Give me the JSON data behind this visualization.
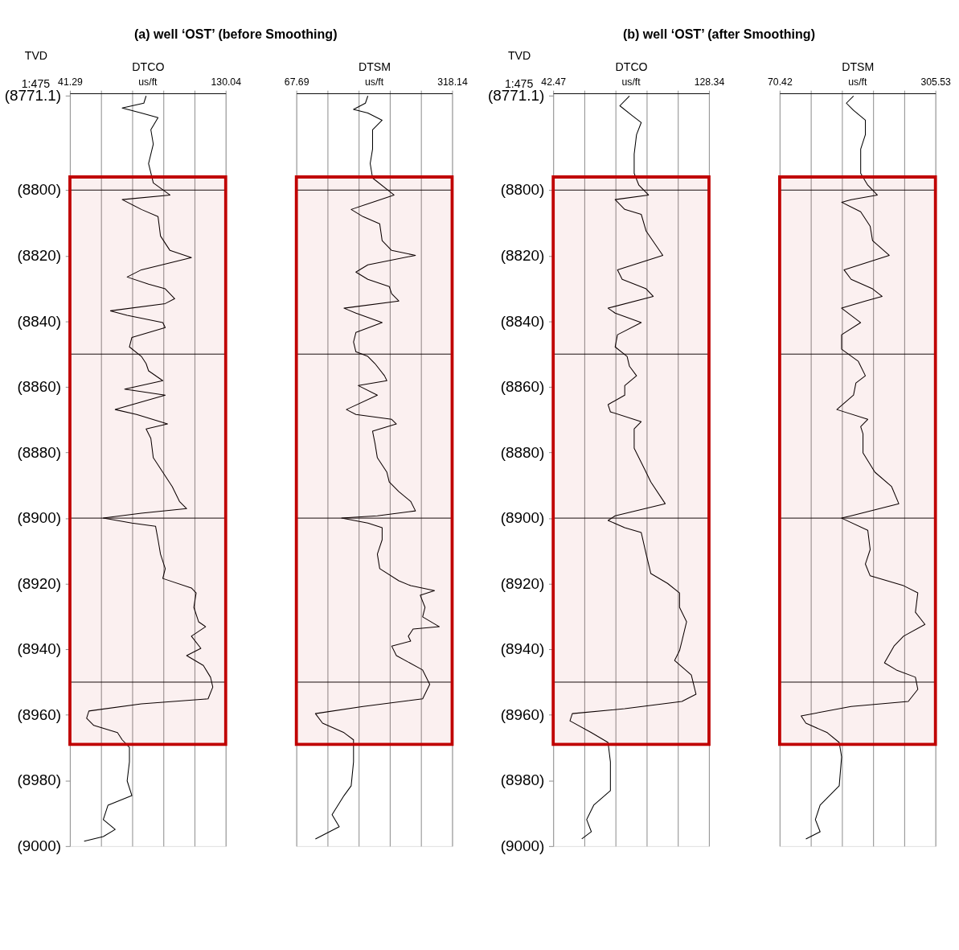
{
  "chart_data": [
    {
      "type": "line",
      "title": "(a) well ‘OST’ (before Smoothing)",
      "xlabel": "DTCO",
      "ylabel": "TVD",
      "annotations": [
        "1:475",
        "us/ft"
      ],
      "grid": "x",
      "xlim": [
        41.29,
        130.04
      ],
      "xticks": [
        41.29,
        {
          "value": 59.04,
          "label": null
        },
        {
          "value": 76.79,
          "label": null
        },
        {
          "value": 94.54,
          "label": null
        },
        {
          "value": 112.29,
          "label": null
        },
        130.04
      ],
      "ylim": [
        9000,
        8770.5
      ],
      "yticks": [
        {
          "value": 8771.1,
          "label": "(8771.1)"
        },
        {
          "value": 8800,
          "label": "(8800)"
        },
        {
          "value": 8820,
          "label": "(8820)"
        },
        {
          "value": 8840,
          "label": "(8840)"
        },
        {
          "value": 8860,
          "label": "(8860)"
        },
        {
          "value": 8880,
          "label": "(8880)"
        },
        {
          "value": 8900,
          "label": "(8900)"
        },
        {
          "value": 8920,
          "label": "(8920)"
        },
        {
          "value": 8940,
          "label": "(8940)"
        },
        {
          "value": 8960,
          "label": "(8960)"
        },
        {
          "value": 8980,
          "label": "(8980)"
        },
        {
          "value": 9000,
          "label": "(9000)"
        }
      ],
      "ref_lines": [
        {
          "axis": "y",
          "value": 8800,
          "color": "#000000"
        },
        {
          "axis": "y",
          "value": 8850,
          "color": "#000000"
        },
        {
          "axis": "y",
          "value": 8900,
          "color": "#000000"
        },
        {
          "axis": "y",
          "value": 8950,
          "color": "#000000"
        }
      ],
      "bands": [
        {
          "axis": "y",
          "from": 8796,
          "to": 8969,
          "color": "#c00000"
        }
      ],
      "series": [
        {
          "color": "#000000",
          "x": [
            84.7,
            83.4,
            71.1,
            82.0,
            91.5,
            87.4,
            88.8,
            86.1,
            88.8,
            98.3,
            71.1,
            82.0,
            91.5,
            92.9,
            98.3,
            110.5,
            82.0,
            73.9,
            86.1,
            95.6,
            101.0,
            95.6,
            64.4,
            73.9,
            94.2,
            95.6,
            76.6,
            75.2,
            82.0,
            84.7,
            86.1,
            94.2,
            72.5,
            95.6,
            67.1,
            79.3,
            96.9,
            84.7,
            87.4,
            88.8,
            94.2,
            99.6,
            103.7,
            107.8,
            82.0,
            60.3,
            76.6,
            90.1,
            91.5,
            92.9,
            95.6,
            94.2,
            110.5,
            113.2,
            111.9,
            114.6,
            118.6,
            110.5,
            115.9,
            107.8,
            117.3,
            121.4,
            122.7,
            120.0,
            82.0,
            52.1,
            50.8,
            54.9,
            68.4,
            71.1,
            75.2,
            75.2,
            73.9,
            76.6,
            63.0,
            60.3,
            67.1,
            60.3,
            49.4
          ],
          "values": [
            8771.3,
            8773.5,
            8775.0,
            8776.5,
            8777.9,
            8781.6,
            8786.0,
            8791.9,
            8797.8,
            8801.5,
            8802.9,
            8805.9,
            8808.1,
            8814.0,
            8818.4,
            8820.6,
            8824.3,
            8826.5,
            8828.7,
            8830.1,
            8833.1,
            8834.6,
            8836.8,
            8838.2,
            8840.4,
            8841.9,
            8844.9,
            8847.8,
            8850.7,
            8852.9,
            8855.1,
            8858.1,
            8860.7,
            8862.5,
            8866.9,
            8868.4,
            8871.3,
            8872.8,
            8875.7,
            8881.6,
            8886.0,
            8890.4,
            8894.9,
            8897.1,
            8898.5,
            8900.0,
            8901.5,
            8902.5,
            8906.6,
            8911.0,
            8915.4,
            8918.4,
            8921.3,
            8922.8,
            8927.2,
            8931.6,
            8933.1,
            8936.0,
            8939.7,
            8941.9,
            8944.9,
            8948.5,
            8951.5,
            8955.1,
            8956.6,
            8958.8,
            8961.0,
            8963.2,
            8965.4,
            8967.6,
            8969.9,
            8974.3,
            8980.1,
            8984.6,
            8987.5,
            8991.9,
            8994.9,
            8997.1,
            8998.5
          ]
        }
      ]
    },
    {
      "type": "line",
      "xlabel": "DTSM",
      "annotations": [
        "us/ft"
      ],
      "grid": "x",
      "tick_labels": "x",
      "xlim": [
        67.69,
        318.14
      ],
      "xticks": [
        67.69,
        {
          "value": 117.78,
          "label": null
        },
        {
          "value": 167.87,
          "label": null
        },
        {
          "value": 217.96,
          "label": null
        },
        {
          "value": 268.05,
          "label": null
        },
        318.14
      ],
      "ylim": [
        9000,
        8770.5
      ],
      "ref_lines": [
        {
          "axis": "y",
          "value": 8800,
          "color": "#000000"
        },
        {
          "axis": "y",
          "value": 8850,
          "color": "#000000"
        },
        {
          "axis": "y",
          "value": 8900,
          "color": "#000000"
        },
        {
          "axis": "y",
          "value": 8950,
          "color": "#000000"
        }
      ],
      "bands": [
        {
          "axis": "y",
          "from": 8796,
          "to": 8969,
          "color": "#c00000"
        }
      ],
      "series": [
        {
          "color": "#000000",
          "x": [
            182.6,
            178.7,
            159.6,
            182.6,
            205.6,
            190.2,
            190.2,
            186.4,
            190.2,
            224.7,
            155.8,
            174.9,
            201.7,
            205.6,
            220.9,
            259.2,
            182.6,
            163.4,
            182.6,
            217.0,
            220.9,
            232.4,
            144.3,
            163.4,
            205.6,
            163.4,
            159.6,
            163.4,
            182.6,
            194.1,
            209.4,
            213.2,
            167.3,
            197.9,
            148.1,
            163.4,
            220.9,
            228.5,
            190.2,
            194.1,
            197.9,
            213.2,
            217.0,
            232.4,
            251.5,
            259.2,
            197.9,
            140.5,
            182.6,
            205.6,
            205.6,
            197.9,
            201.7,
            232.4,
            251.5,
            289.8,
            266.8,
            274.5,
            270.7,
            297.5,
            255.3,
            247.7,
            251.5,
            220.9,
            228.5,
            270.7,
            282.1,
            270.7,
            174.9,
            98.3,
            109.8,
            144.3,
            159.6,
            159.6,
            155.8,
            144.3,
            125.1,
            136.6,
            98.3
          ],
          "values": [
            8771.3,
            8773.5,
            8775.4,
            8776.5,
            8778.7,
            8781.6,
            8787.5,
            8791.9,
            8796.3,
            8801.5,
            8805.9,
            8808.1,
            8810.3,
            8815.4,
            8818.4,
            8819.9,
            8822.8,
            8825.0,
            8827.2,
            8829.4,
            8831.6,
            8833.8,
            8836.0,
            8837.5,
            8840.4,
            8843.4,
            8846.3,
            8849.3,
            8850.7,
            8852.9,
            8856.6,
            8858.1,
            8859.6,
            8862.5,
            8866.9,
            8868.4,
            8869.9,
            8871.3,
            8873.5,
            8877.2,
            8881.6,
            8886.0,
            8889.0,
            8891.9,
            8894.9,
            8897.8,
            8899.3,
            8900.0,
            8901.5,
            8902.9,
            8906.6,
            8911.0,
            8915.4,
            8919.1,
            8920.6,
            8922.1,
            8923.5,
            8927.2,
            8930.1,
            8933.1,
            8933.8,
            8936.0,
            8937.5,
            8939.0,
            8941.9,
            8946.3,
            8950.7,
            8955.1,
            8957.4,
            8959.6,
            8962.5,
            8965.4,
            8967.6,
            8974.3,
            8981.6,
            8984.6,
            8990.4,
            8994.1,
            8997.8
          ]
        }
      ]
    },
    {
      "type": "line",
      "title": "(b) well ‘OST’ (after Smoothing)",
      "xlabel": "DTCO",
      "ylabel": "TVD",
      "annotations": [
        "1:475",
        "us/ft"
      ],
      "grid": "x",
      "xlim": [
        42.47,
        128.34
      ],
      "xticks": [
        42.47,
        {
          "value": 59.644,
          "label": null
        },
        {
          "value": 76.818,
          "label": null
        },
        {
          "value": 93.992,
          "label": null
        },
        {
          "value": 111.166,
          "label": null
        },
        128.34
      ],
      "ylim": [
        9000,
        8770.5
      ],
      "yticks": [
        {
          "value": 8771.1,
          "label": "(8771.1)"
        },
        {
          "value": 8800,
          "label": "(8800)"
        },
        {
          "value": 8820,
          "label": "(8820)"
        },
        {
          "value": 8840,
          "label": "(8840)"
        },
        {
          "value": 8860,
          "label": "(8860)"
        },
        {
          "value": 8880,
          "label": "(8880)"
        },
        {
          "value": 8900,
          "label": "(8900)"
        },
        {
          "value": 8920,
          "label": "(8920)"
        },
        {
          "value": 8940,
          "label": "(8940)"
        },
        {
          "value": 8960,
          "label": "(8960)"
        },
        {
          "value": 8980,
          "label": "(8980)"
        },
        {
          "value": 9000,
          "label": "(9000)"
        }
      ],
      "ref_lines": [
        {
          "axis": "y",
          "value": 8800,
          "color": "#000000"
        },
        {
          "axis": "y",
          "value": 8850,
          "color": "#000000"
        },
        {
          "axis": "y",
          "value": 8900,
          "color": "#000000"
        },
        {
          "axis": "y",
          "value": 8950,
          "color": "#000000"
        }
      ],
      "bands": [
        {
          "axis": "y",
          "from": 8796,
          "to": 8969,
          "color": "#c00000"
        }
      ],
      "series": [
        {
          "color": "#000000",
          "x": [
            84.5,
            79.2,
            85.8,
            91.0,
            88.4,
            87.1,
            87.1,
            89.7,
            95.0,
            76.6,
            81.9,
            91.0,
            93.7,
            102.9,
            77.9,
            80.5,
            93.7,
            97.6,
            72.7,
            76.6,
            91.0,
            77.9,
            76.6,
            83.2,
            84.5,
            88.4,
            81.9,
            81.9,
            72.7,
            74.0,
            91.0,
            87.1,
            87.1,
            92.4,
            96.3,
            104.2,
            76.6,
            72.7,
            81.9,
            91.0,
            93.7,
            96.3,
            105.5,
            112.1,
            112.1,
            116.0,
            113.4,
            112.1,
            109.4,
            118.6,
            121.2,
            113.4,
            81.9,
            53.0,
            51.7,
            63.5,
            72.7,
            74.0,
            74.0,
            64.8,
            60.9,
            63.5,
            58.2
          ],
          "values": [
            8771.3,
            8774.3,
            8777.2,
            8779.4,
            8783.1,
            8789.0,
            8794.9,
            8798.5,
            8801.5,
            8802.9,
            8805.9,
            8807.4,
            8812.5,
            8819.9,
            8824.3,
            8827.2,
            8830.1,
            8832.4,
            8836.0,
            8837.5,
            8840.4,
            8844.1,
            8847.8,
            8850.7,
            8853.7,
            8856.6,
            8859.6,
            8862.5,
            8865.4,
            8867.6,
            8870.6,
            8872.8,
            8878.7,
            8884.6,
            8889.0,
            8895.6,
            8899.3,
            8900.7,
            8902.9,
            8904.4,
            8911.0,
            8916.9,
            8919.9,
            8922.8,
            8927.2,
            8931.6,
            8937.5,
            8940.4,
            8943.4,
            8947.8,
            8953.7,
            8955.9,
            8958.1,
            8959.6,
            8961.8,
            8965.4,
            8968.4,
            8974.3,
            8983.1,
            8987.5,
            8991.9,
            8995.6,
            8997.8
          ]
        }
      ]
    },
    {
      "type": "line",
      "xlabel": "DTSM",
      "annotations": [
        "us/ft"
      ],
      "grid": "x",
      "tick_labels": "x",
      "xlim": [
        70.42,
        305.53
      ],
      "xticks": [
        70.42,
        {
          "value": 117.442,
          "label": null
        },
        {
          "value": 164.464,
          "label": null
        },
        {
          "value": 211.486,
          "label": null
        },
        {
          "value": 258.508,
          "label": null
        },
        305.53
      ],
      "ylim": [
        9000,
        8770.5
      ],
      "ref_lines": [
        {
          "axis": "y",
          "value": 8800,
          "color": "#000000"
        },
        {
          "axis": "y",
          "value": 8850,
          "color": "#000000"
        },
        {
          "axis": "y",
          "value": 8900,
          "color": "#000000"
        },
        {
          "axis": "y",
          "value": 8950,
          "color": "#000000"
        }
      ],
      "bands": [
        {
          "axis": "y",
          "from": 8796,
          "to": 8969,
          "color": "#c00000"
        }
      ],
      "series": [
        {
          "color": "#000000",
          "x": [
            181.9,
            171.1,
            181.9,
            199.8,
            199.8,
            192.7,
            192.7,
            203.4,
            217.8,
            178.3,
            163.9,
            192.7,
            207.0,
            210.6,
            235.8,
            167.5,
            178.3,
            210.6,
            225.0,
            199.8,
            163.9,
            192.7,
            163.9,
            163.9,
            189.1,
            199.8,
            185.5,
            181.9,
            156.7,
            203.4,
            192.7,
            196.2,
            196.2,
            214.2,
            239.4,
            250.2,
            178.3,
            163.9,
            203.4,
            207.0,
            199.8,
            207.0,
            257.4,
            278.9,
            275.3,
            289.7,
            257.4,
            243.0,
            228.6,
            246.6,
            275.3,
            278.9,
            264.5,
            178.3,
            102.8,
            110.0,
            142.3,
            160.3,
            163.9,
            160.3,
            131.5,
            124.3,
            131.5,
            110.0
          ],
          "values": [
            8771.3,
            8773.5,
            8775.7,
            8778.7,
            8783.1,
            8787.5,
            8794.9,
            8798.5,
            8801.5,
            8802.9,
            8803.7,
            8806.6,
            8811.0,
            8815.4,
            8819.9,
            8824.3,
            8827.2,
            8830.1,
            8832.4,
            8833.8,
            8836.0,
            8840.4,
            8844.1,
            8848.5,
            8852.2,
            8856.6,
            8858.8,
            8862.5,
            8866.9,
            8869.9,
            8872.1,
            8874.3,
            8880.1,
            8886.0,
            8890.4,
            8895.6,
            8899.3,
            8900.0,
            8903.7,
            8909.6,
            8914.0,
            8917.6,
            8920.6,
            8922.8,
            8928.7,
            8932.4,
            8936.0,
            8939.0,
            8944.1,
            8946.3,
            8948.5,
            8952.2,
            8955.9,
            8957.4,
            8960.3,
            8962.5,
            8965.4,
            8968.4,
            8972.8,
            8981.6,
            8987.5,
            8991.9,
            8995.6,
            8997.8
          ]
        }
      ]
    }
  ]
}
